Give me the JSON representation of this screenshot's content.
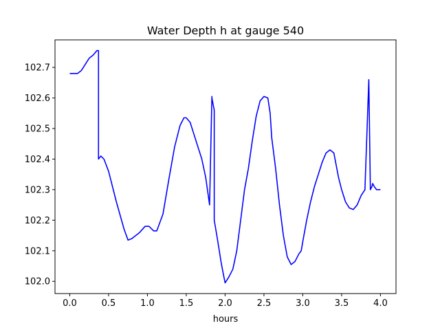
{
  "chart_data": {
    "type": "line",
    "title": "Water Depth h at gauge 540",
    "xlabel": "hours",
    "ylabel": "",
    "xlim": [
      -0.19,
      4.2
    ],
    "ylim": [
      101.96,
      102.79
    ],
    "grid": false,
    "legend": "none",
    "xticks": [
      0.0,
      0.5,
      1.0,
      1.5,
      2.0,
      2.5,
      3.0,
      3.5,
      4.0
    ],
    "xtick_labels": [
      "0.0",
      "0.5",
      "1.0",
      "1.5",
      "2.0",
      "2.5",
      "3.0",
      "3.5",
      "4.0"
    ],
    "yticks": [
      102.0,
      102.1,
      102.2,
      102.3,
      102.4,
      102.5,
      102.6,
      102.7
    ],
    "ytick_labels": [
      "102.0",
      "102.1",
      "102.2",
      "102.3",
      "102.4",
      "102.5",
      "102.6",
      "102.7"
    ],
    "series": [
      {
        "color": "#0000ff",
        "x": [
          0.0,
          0.05,
          0.1,
          0.15,
          0.2,
          0.25,
          0.3,
          0.35,
          0.37,
          0.37,
          0.4,
          0.44,
          0.5,
          0.6,
          0.7,
          0.75,
          0.8,
          0.9,
          0.97,
          1.02,
          1.08,
          1.12,
          1.2,
          1.28,
          1.35,
          1.42,
          1.47,
          1.5,
          1.55,
          1.6,
          1.65,
          1.7,
          1.75,
          1.8,
          1.83,
          1.83,
          1.86,
          1.86,
          1.9,
          1.95,
          1.98,
          2.0,
          2.05,
          2.1,
          2.15,
          2.2,
          2.25,
          2.3,
          2.35,
          2.4,
          2.45,
          2.5,
          2.55,
          2.58,
          2.6,
          2.65,
          2.7,
          2.75,
          2.8,
          2.85,
          2.9,
          2.95,
          2.98,
          3.0,
          3.05,
          3.1,
          3.15,
          3.2,
          3.25,
          3.3,
          3.35,
          3.4,
          3.43,
          3.46,
          3.5,
          3.55,
          3.6,
          3.65,
          3.7,
          3.75,
          3.8,
          3.85,
          3.87,
          3.89,
          3.9,
          3.9,
          3.92,
          3.95,
          4.0
        ],
        "y": [
          102.68,
          102.68,
          102.68,
          102.69,
          102.71,
          102.73,
          102.74,
          102.755,
          102.755,
          102.4,
          102.41,
          102.4,
          102.36,
          102.26,
          102.17,
          102.135,
          102.14,
          102.16,
          102.18,
          102.18,
          102.165,
          102.165,
          102.22,
          102.34,
          102.44,
          102.51,
          102.535,
          102.535,
          102.52,
          102.48,
          102.44,
          102.4,
          102.34,
          102.25,
          102.605,
          102.6,
          102.56,
          102.2,
          102.14,
          102.06,
          102.02,
          101.995,
          102.015,
          102.04,
          102.1,
          102.2,
          102.3,
          102.37,
          102.46,
          102.54,
          102.59,
          102.605,
          102.6,
          102.55,
          102.47,
          102.37,
          102.25,
          102.15,
          102.08,
          102.055,
          102.065,
          102.09,
          102.1,
          102.13,
          102.2,
          102.26,
          102.31,
          102.35,
          102.39,
          102.42,
          102.43,
          102.42,
          102.38,
          102.34,
          102.3,
          102.26,
          102.24,
          102.235,
          102.25,
          102.28,
          102.3,
          102.66,
          102.3,
          102.31,
          102.32,
          102.32,
          102.31,
          102.3,
          102.3
        ]
      }
    ]
  }
}
